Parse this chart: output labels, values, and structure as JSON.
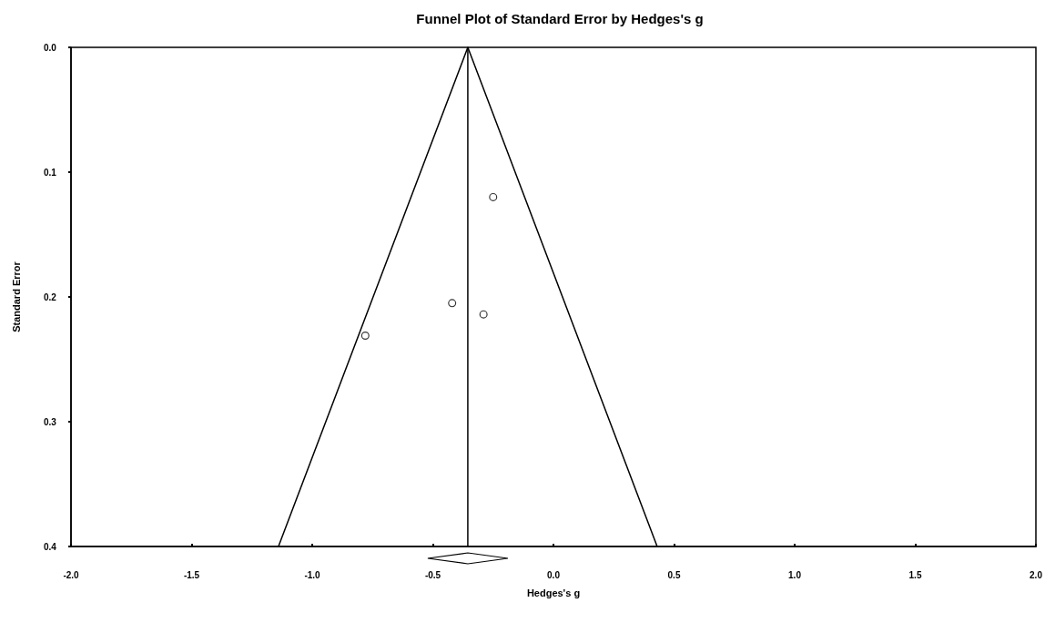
{
  "chart_data": {
    "type": "scatter",
    "title": "Funnel Plot of Standard Error by Hedges's g",
    "xlabel": "Hedges's g",
    "ylabel": "Standard Error",
    "xlim": [
      -2.0,
      2.0
    ],
    "xticks": [
      {
        "value": -2,
        "label": "-2.0"
      },
      {
        "value": -1.5,
        "label": "-1.5"
      },
      {
        "value": -1,
        "label": "-1.0"
      },
      {
        "value": -0.5,
        "label": "-0.5"
      },
      {
        "value": 0,
        "label": "0.0"
      },
      {
        "value": 0.5,
        "label": "0.5"
      },
      {
        "value": 1,
        "label": "1.0"
      },
      {
        "value": 1.5,
        "label": "1.5"
      },
      {
        "value": 2,
        "label": "2.0"
      }
    ],
    "ylim": [
      0.4,
      0.0
    ],
    "yticks": [
      {
        "value": 0,
        "label": "0.0"
      },
      {
        "value": 0.1,
        "label": "0.1"
      },
      {
        "value": 0.2,
        "label": "0.2"
      },
      {
        "value": 0.3,
        "label": "0.3"
      },
      {
        "value": 0.4,
        "label": "0.4"
      }
    ],
    "grid": false,
    "series": [
      {
        "marker": "circle",
        "color": "#000000",
        "x": [
          -0.25,
          -0.42,
          -0.29,
          -0.78
        ],
        "values": [
          0.12,
          0.205,
          0.214,
          0.231
        ]
      },
      {
        "type": "line",
        "color": "#000000",
        "x": [
          -1.14,
          -0.355,
          0.43
        ],
        "values": [
          0.4,
          0.0,
          0.4
        ]
      }
    ],
    "ref_lines": [
      {
        "axis": "x",
        "value": -0.355,
        "color": "#000000"
      }
    ]
  }
}
